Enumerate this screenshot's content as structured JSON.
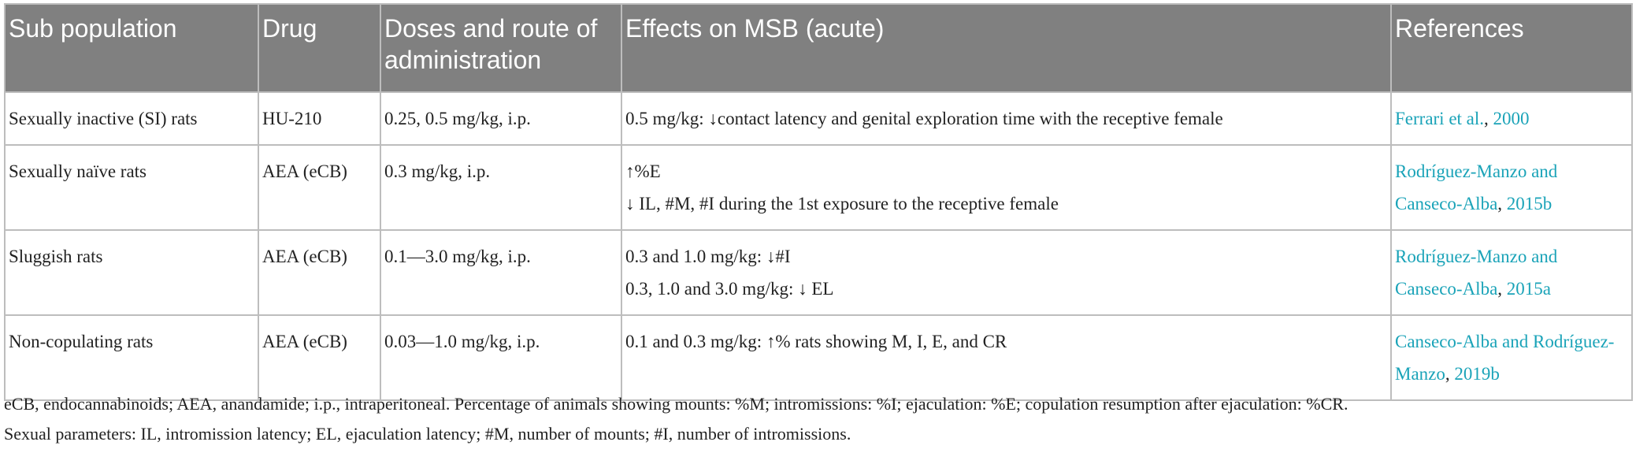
{
  "table": {
    "header": [
      "Sub population",
      "Drug",
      "Doses and route of administration",
      "Effects on MSB (acute)",
      "References"
    ],
    "rows": [
      [
        "Sexually inactive (SI) rats",
        "HU-210",
        "0.25, 0.5 mg/kg, i.p.",
        [
          "0.5 mg/kg: ↓contact latency and genital exploration time with the receptive female"
        ],
        [
          "Ferrari et al.",
          ", ",
          "2000"
        ]
      ],
      [
        "Sexually naïve rats",
        "AEA (eCB)",
        "0.3 mg/kg, i.p.",
        [
          "↑%E",
          "↓ IL, #M, #I during the 1st exposure to the receptive female"
        ],
        [
          "Rodríguez-Manzo and Canseco-Alba",
          ", ",
          "2015b"
        ]
      ],
      [
        "Sluggish rats",
        "AEA (eCB)",
        "0.1—3.0 mg/kg, i.p.",
        [
          "0.3 and 1.0 mg/kg: ↓#I",
          "0.3, 1.0 and 3.0 mg/kg: ↓ EL"
        ],
        [
          "Rodríguez-Manzo and Canseco-Alba",
          ", ",
          "2015a"
        ]
      ],
      [
        "Non-copulating rats",
        "AEA (eCB)",
        "0.03—1.0 mg/kg, i.p.",
        [
          "0.1 and 0.3 mg/kg: ↑% rats showing M, I, E, and CR"
        ],
        [
          "Canseco-Alba and Rodríguez-Manzo",
          ", ",
          "2019b"
        ]
      ]
    ]
  },
  "footnotes": [
    "eCB, endocannabinoids; AEA, anandamide; i.p., intraperitoneal. Percentage of animals showing mounts: %M; intromissions: %I; ejaculation: %E; copulation resumption after ejaculation: %CR.",
    "Sexual parameters: IL, intromission latency; EL, ejaculation latency; #M, number of mounts; #I, number of intromissions."
  ]
}
